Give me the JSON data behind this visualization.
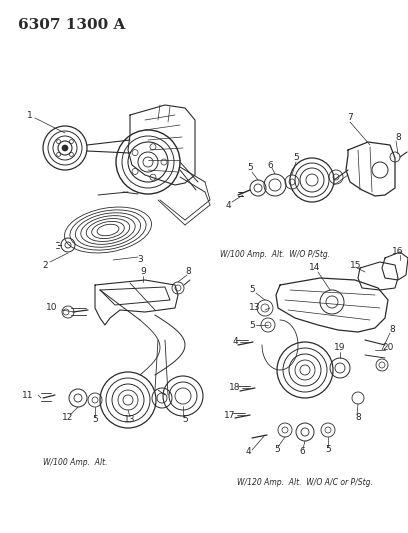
{
  "title": "6307 1300 A",
  "bg_color": "#ffffff",
  "line_color": "#2a2a2a",
  "caption1": "W/100 Amp.  Alt.  W/O P/Stg.",
  "caption2": "W/100 Amp.  Alt.",
  "caption3": "W/120 Amp.  Alt.  W/O A/C or P/Stg.",
  "fig_width": 4.08,
  "fig_height": 5.33,
  "dpi": 100
}
